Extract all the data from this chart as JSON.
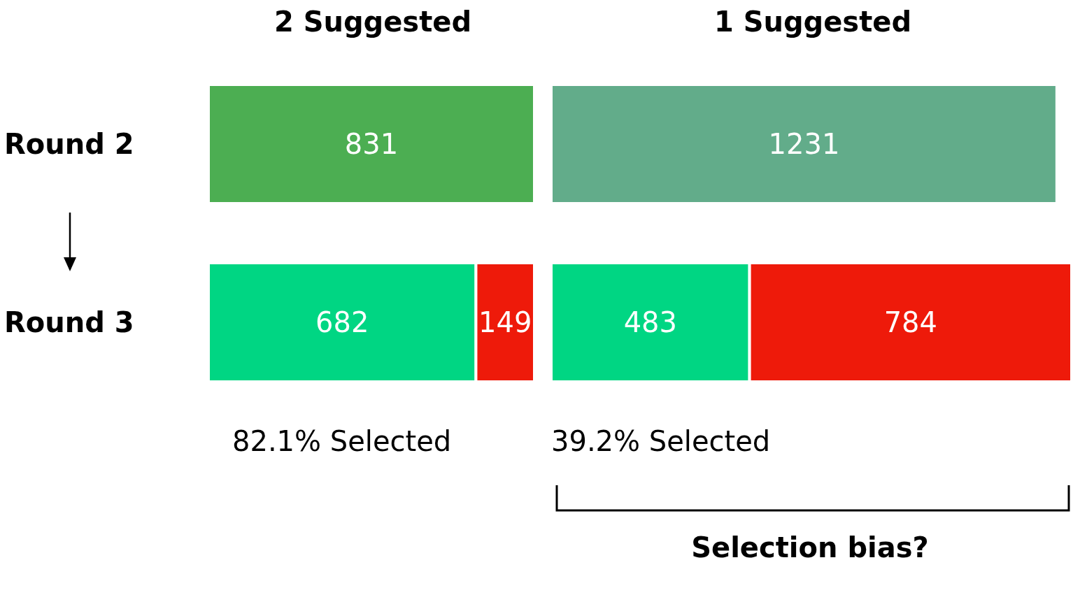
{
  "chart_data": [
    {
      "type": "bar",
      "orientation": "horizontal",
      "stacked": true,
      "title": "2 Suggested",
      "categories": [
        "Round 2",
        "Round 3"
      ],
      "series": [
        {
          "colors": [
            "#4cae52",
            "#00d683"
          ],
          "values": [
            831,
            682
          ]
        },
        {
          "colors": [
            "#ee1a0a",
            "#ee1a0a"
          ],
          "values": [
            null,
            149
          ]
        }
      ],
      "xlim": [
        0,
        831
      ],
      "data_labels": true,
      "tick_labels": "y",
      "annotations": [
        "82.1% Selected"
      ]
    },
    {
      "type": "bar",
      "orientation": "horizontal",
      "stacked": true,
      "title": "1 Suggested",
      "categories": [
        null,
        null
      ],
      "series": [
        {
          "colors": [
            "#62ac8a",
            "#00d683"
          ],
          "values": [
            1231,
            483
          ]
        },
        {
          "colors": [
            "#ee1a0a",
            "#ee1a0a"
          ],
          "values": [
            null,
            784
          ]
        }
      ],
      "xlim": [
        0,
        1267
      ],
      "data_labels": true,
      "tick_labels": false,
      "annotations": [
        "39.2% Selected",
        "Selection bias?"
      ]
    }
  ]
}
